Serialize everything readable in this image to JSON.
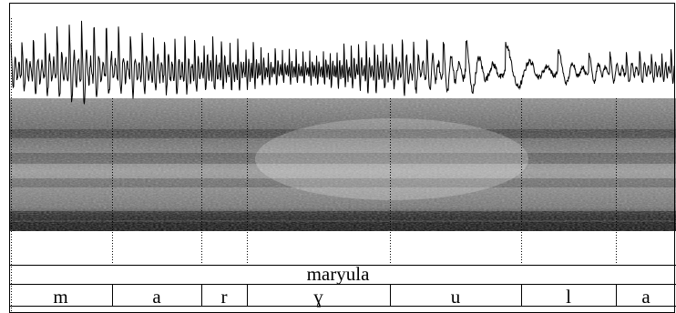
{
  "word_tier": {
    "label": "maryula"
  },
  "phone_tier": {
    "segments": [
      {
        "label": "m"
      },
      {
        "label": "a"
      },
      {
        "label": "r"
      },
      {
        "label": "ɣ"
      },
      {
        "label": "u"
      },
      {
        "label": "l"
      },
      {
        "label": "a"
      }
    ]
  },
  "colors": {
    "waveform": "#000000",
    "spectrogram_bg": "#c8c8c8",
    "spectrogram_dark": "#1a1a1a",
    "border": "#000000"
  }
}
